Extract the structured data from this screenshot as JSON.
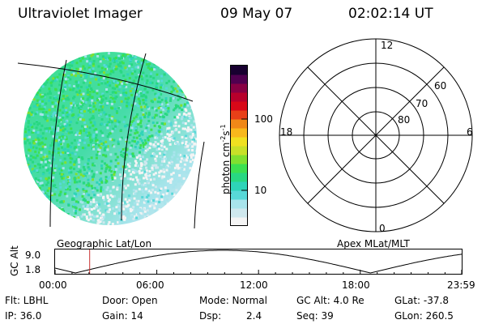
{
  "header": {
    "instrument": "Ultraviolet Imager",
    "date": "09 May 07",
    "time": "02:02:14 UT"
  },
  "colorbar": {
    "label": "photon cm^-2 s^-1",
    "label_main": "photon cm",
    "label_exp1": "-2",
    "label_s": "s",
    "label_exp2": "-1",
    "ticks": [
      "100",
      "10"
    ],
    "colors": [
      "#f4f4f4",
      "#cfe8ee",
      "#a8e4ec",
      "#58d8d8",
      "#2ed4b8",
      "#28d882",
      "#3ce050",
      "#80e030",
      "#c8e028",
      "#f0e020",
      "#f8b81c",
      "#f08818",
      "#e84018",
      "#d80818",
      "#b8002c",
      "#880044",
      "#500050",
      "#180030"
    ]
  },
  "polar_plot": {
    "top_label": "12",
    "bottom_label": "0",
    "left_label": "18",
    "right_label": "6",
    "lat_labels": [
      "60",
      "70",
      "80"
    ]
  },
  "timeline": {
    "left_label": "Geographic Lat/Lon",
    "right_label": "Apex MLat/MLT",
    "y_axis_title": "GC Alt",
    "y_max": "9.0",
    "y_min": "1.8",
    "x_ticks": [
      "00:00",
      "06:00",
      "12:00",
      "18:00",
      "23:59"
    ],
    "current_time_marker_hours": 2.04
  },
  "info": {
    "flt": "Flt: LBHL",
    "ip": "IP: 36.0",
    "door": "Door: Open",
    "gain": "Gain: 14",
    "mode": "Mode: Normal",
    "dsp_label": "Dsp:",
    "dsp_value": "2.4",
    "gc_alt": "GC Alt: 4.0 Re",
    "seq": "Seq: 39",
    "glat": "GLat: -37.8",
    "glon": "GLon: 260.5"
  }
}
